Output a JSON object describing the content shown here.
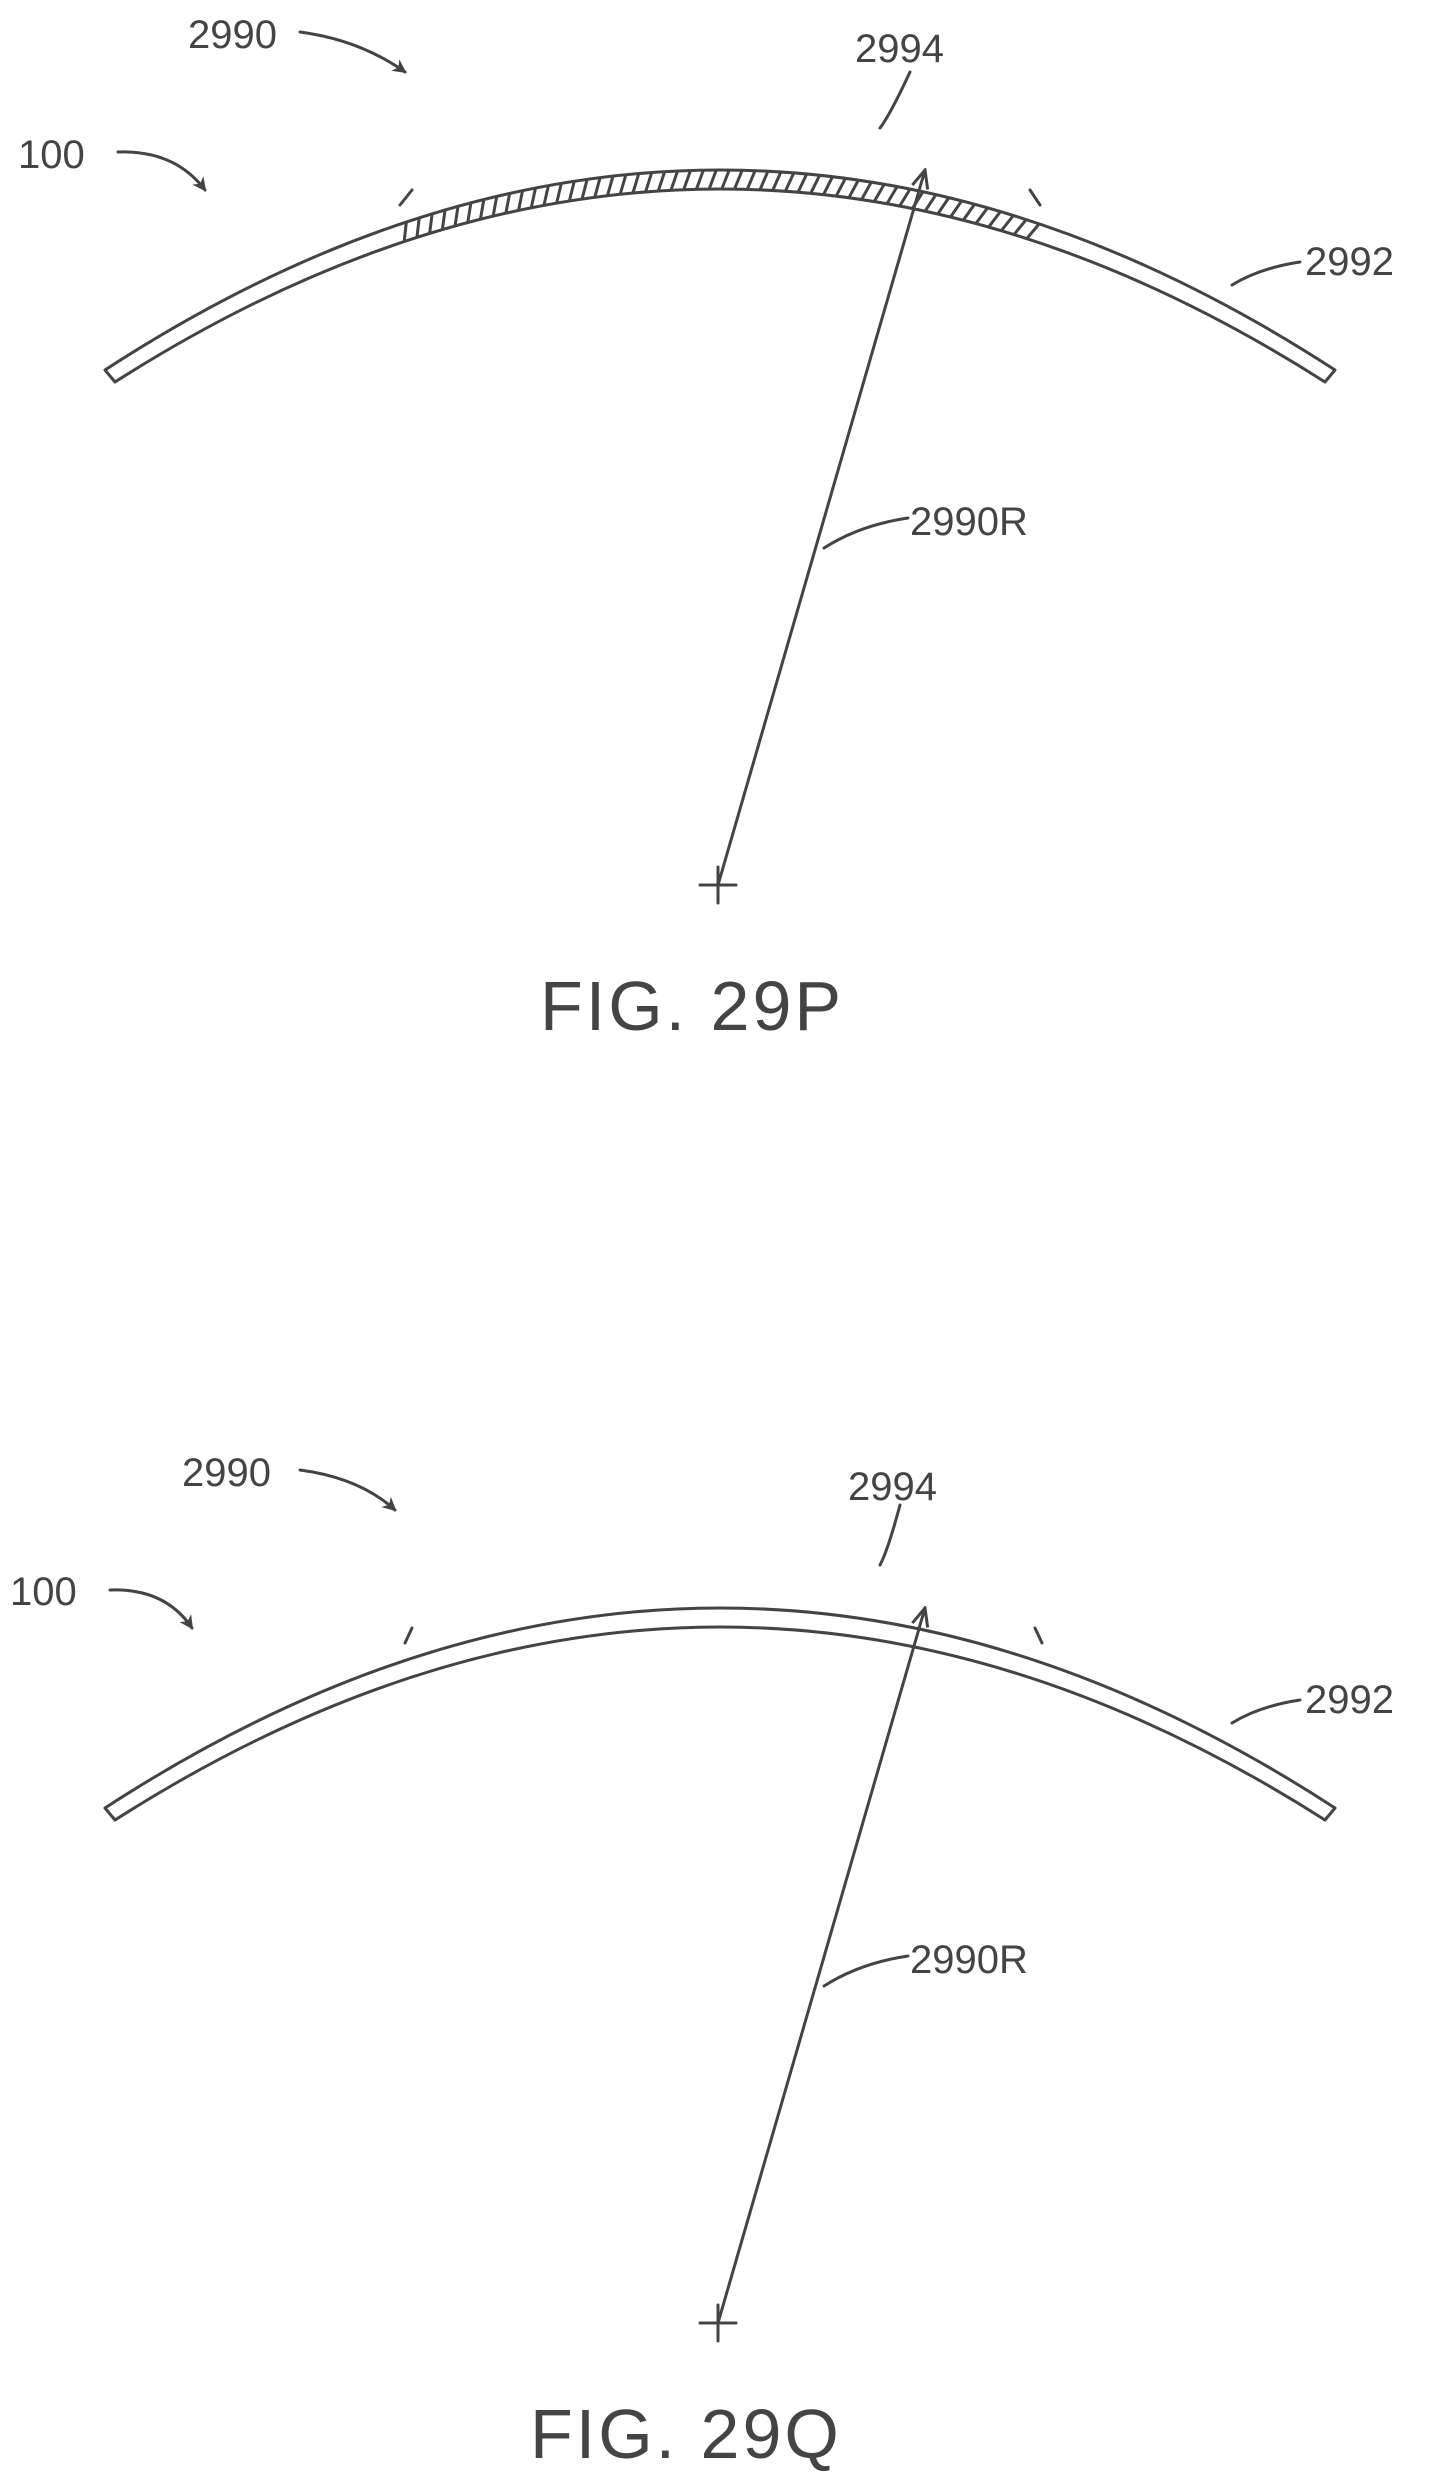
{
  "figures": [
    {
      "id": "29P",
      "caption": "FIG. 29P",
      "labels": {
        "assembly": "2990",
        "device": "100",
        "region": "2994",
        "body": "2992",
        "radius": "2990R"
      },
      "region_fill": "hatched"
    },
    {
      "id": "29Q",
      "caption": "FIG. 29Q",
      "labels": {
        "assembly": "2990",
        "device": "100",
        "region": "2994",
        "body": "2992",
        "radius": "2990R"
      },
      "region_fill": "plain"
    }
  ],
  "colors": {
    "line": "#444444",
    "background": "#ffffff"
  }
}
